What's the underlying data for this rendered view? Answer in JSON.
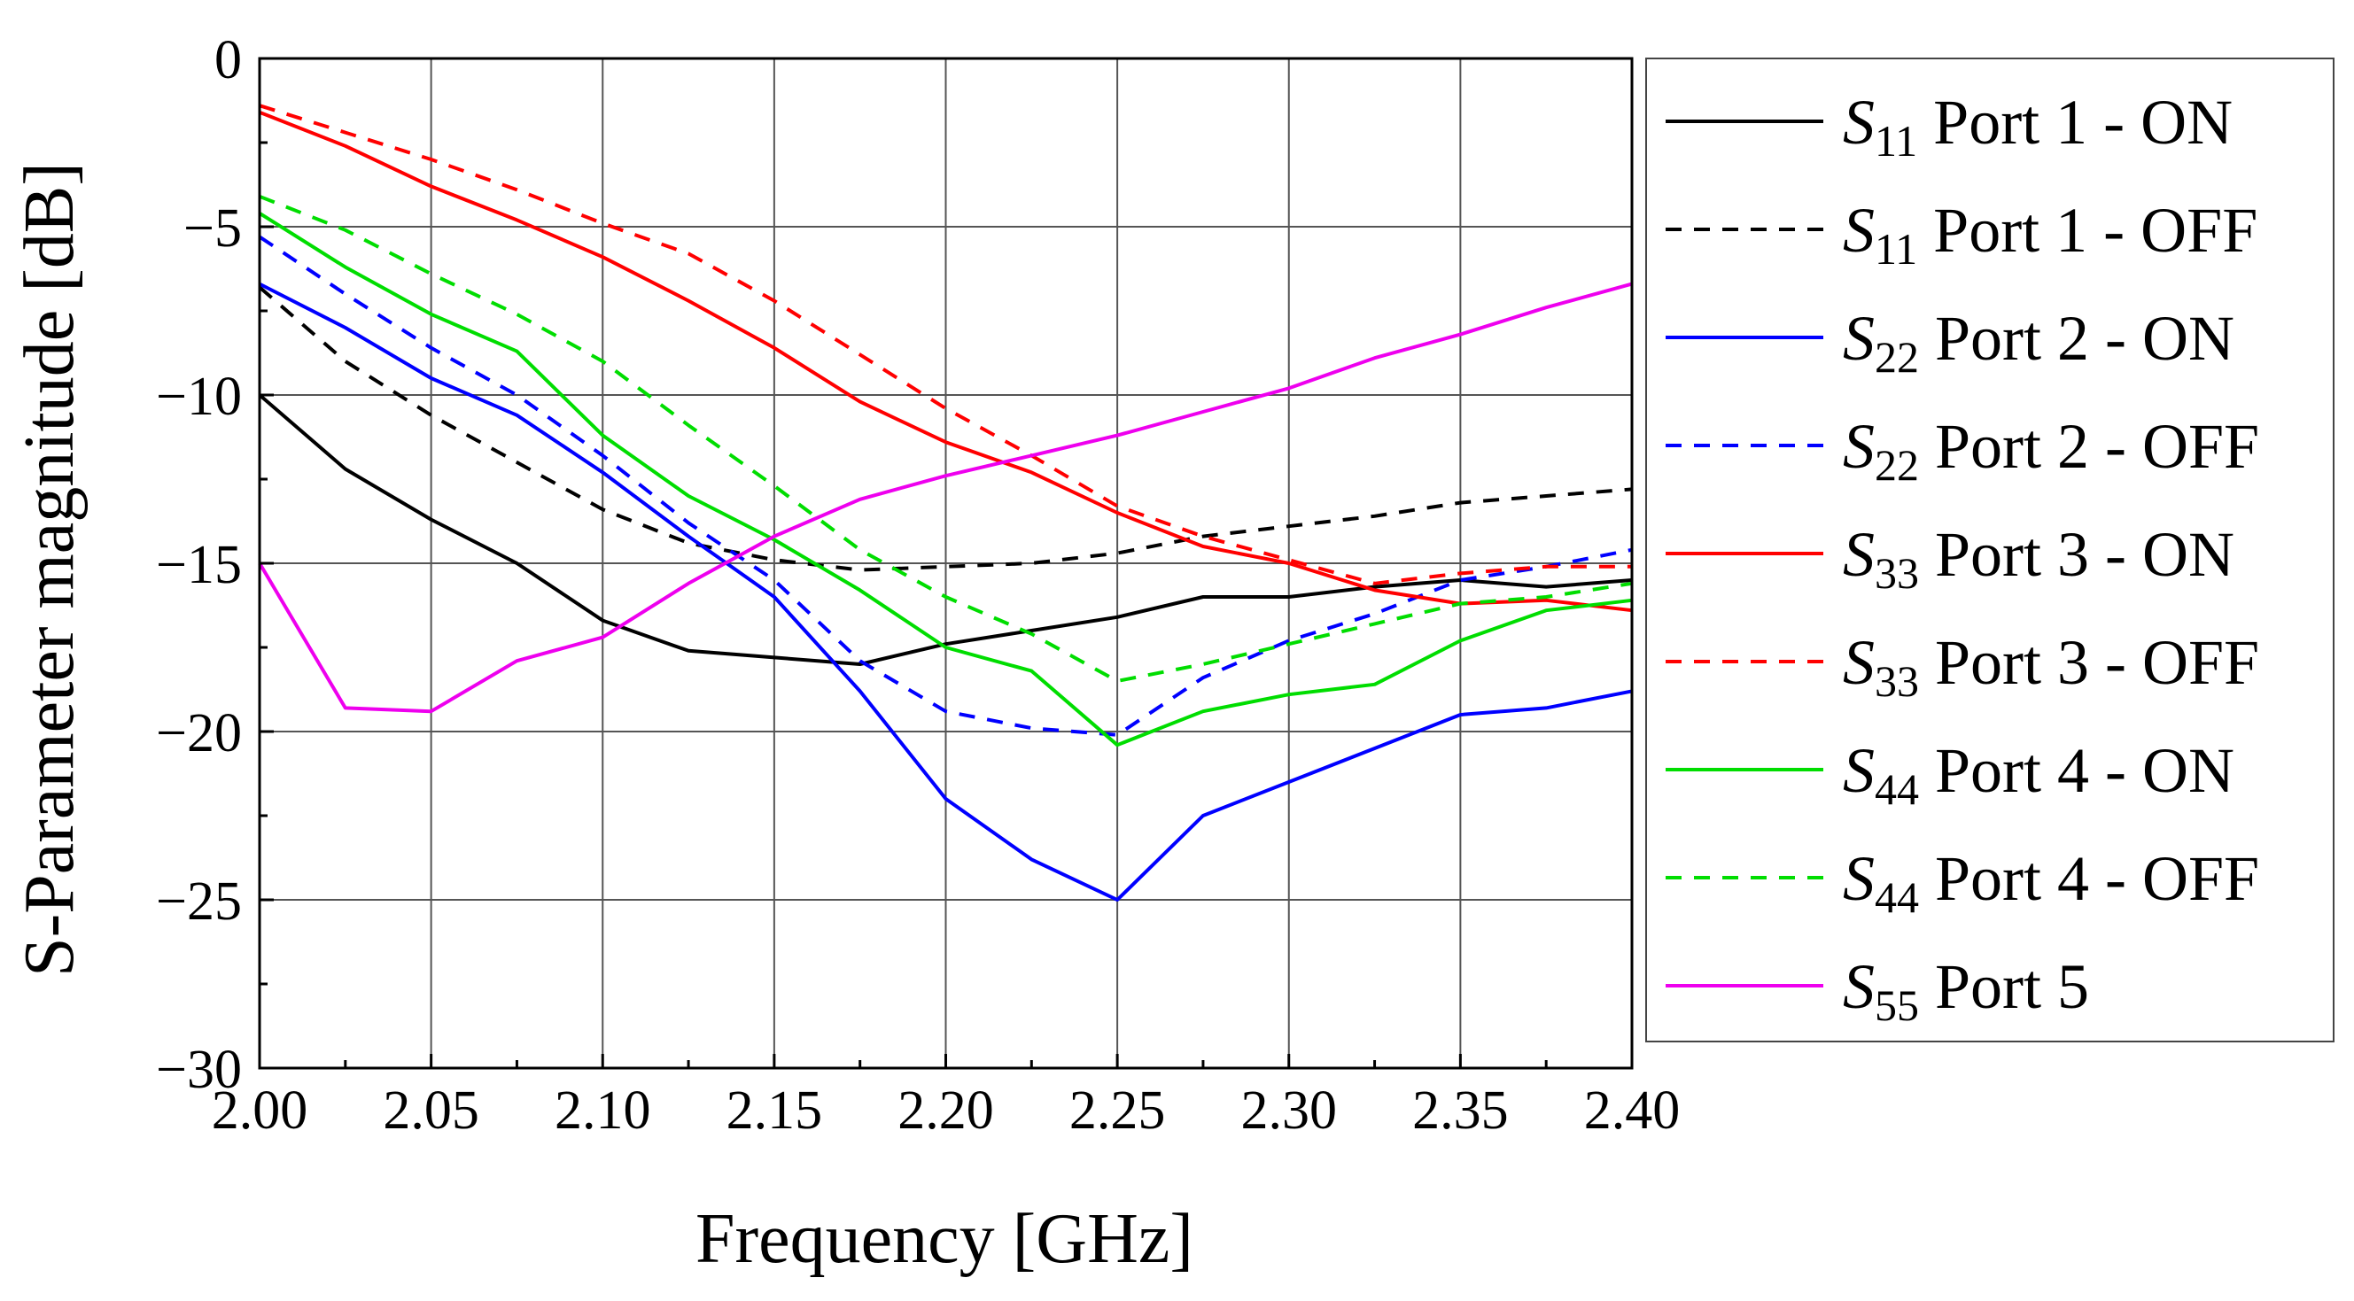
{
  "chart_data": {
    "type": "line",
    "title": "",
    "xlabel": "Frequency [GHz]",
    "ylabel": "S-Parameter magnitude [dB]",
    "xlim": [
      2.0,
      2.4
    ],
    "ylim": [
      -30,
      0
    ],
    "grid": true,
    "legend_position": "right",
    "x_ticks": [
      "2.00",
      "2.05",
      "2.10",
      "2.15",
      "2.20",
      "2.25",
      "2.30",
      "2.35",
      "2.40"
    ],
    "y_ticks": [
      "0",
      "−5",
      "−10",
      "−15",
      "−20",
      "−25",
      "−30"
    ],
    "x": [
      2.0,
      2.025,
      2.05,
      2.075,
      2.1,
      2.125,
      2.15,
      2.175,
      2.2,
      2.225,
      2.25,
      2.275,
      2.3,
      2.325,
      2.35,
      2.375,
      2.4
    ],
    "series": [
      {
        "name": "S11 Port 1 - ON",
        "sym": "S",
        "sub": "11",
        "rest": " Port 1 - ON",
        "color": "#000000",
        "dashed": false,
        "values": [
          -10.0,
          -12.2,
          -13.7,
          -15.0,
          -16.7,
          -17.6,
          -17.8,
          -18.0,
          -17.4,
          -17.0,
          -16.6,
          -16.0,
          -16.0,
          -15.7,
          -15.5,
          -15.7,
          -15.5
        ]
      },
      {
        "name": "S11 Port 1 - OFF",
        "sym": "S",
        "sub": "11",
        "rest": " Port 1 - OFF",
        "color": "#000000",
        "dashed": true,
        "values": [
          -6.8,
          -9.0,
          -10.6,
          -12.0,
          -13.4,
          -14.4,
          -14.9,
          -15.2,
          -15.1,
          -15.0,
          -14.7,
          -14.2,
          -13.9,
          -13.6,
          -13.2,
          -13.0,
          -12.8
        ]
      },
      {
        "name": "S22 Port 2 - ON",
        "sym": "S",
        "sub": "22",
        "rest": " Port 2 - ON",
        "color": "#0000ff",
        "dashed": false,
        "values": [
          -6.7,
          -8.0,
          -9.5,
          -10.6,
          -12.3,
          -14.2,
          -16.0,
          -18.8,
          -22.0,
          -23.8,
          -25.0,
          -22.5,
          -21.5,
          -20.5,
          -19.5,
          -19.3,
          -18.8
        ]
      },
      {
        "name": "S22 Port 2 - OFF",
        "sym": "S",
        "sub": "22",
        "rest": " Port 2 - OFF",
        "color": "#0000ff",
        "dashed": true,
        "values": [
          -5.3,
          -7.0,
          -8.6,
          -10.0,
          -11.8,
          -13.8,
          -15.5,
          -17.9,
          -19.4,
          -19.9,
          -20.1,
          -18.4,
          -17.3,
          -16.5,
          -15.5,
          -15.1,
          -14.6
        ]
      },
      {
        "name": "S33 Port 3 - ON",
        "sym": "S",
        "sub": "33",
        "rest": " Port 3 - ON",
        "color": "#ff0000",
        "dashed": false,
        "values": [
          -1.6,
          -2.6,
          -3.8,
          -4.8,
          -5.9,
          -7.2,
          -8.6,
          -10.2,
          -11.4,
          -12.3,
          -13.5,
          -14.5,
          -15.0,
          -15.8,
          -16.2,
          -16.1,
          -16.4
        ]
      },
      {
        "name": "S33 Port 3 - OFF",
        "sym": "S",
        "sub": "33",
        "rest": " Port 3 - OFF",
        "color": "#ff0000",
        "dashed": true,
        "values": [
          -1.4,
          -2.2,
          -3.0,
          -3.9,
          -4.9,
          -5.8,
          -7.2,
          -8.8,
          -10.4,
          -11.8,
          -13.3,
          -14.2,
          -14.9,
          -15.6,
          -15.3,
          -15.1,
          -15.1
        ]
      },
      {
        "name": "S44 Port 4 - ON",
        "sym": "S",
        "sub": "44",
        "rest": " Port 4 - ON",
        "color": "#00dd00",
        "dashed": false,
        "values": [
          -4.6,
          -6.2,
          -7.6,
          -8.7,
          -11.2,
          -13.0,
          -14.3,
          -15.8,
          -17.5,
          -18.2,
          -20.4,
          -19.4,
          -18.9,
          -18.6,
          -17.3,
          -16.4,
          -16.1
        ]
      },
      {
        "name": "S44 Port 4 - OFF",
        "sym": "S",
        "sub": "44",
        "rest": " Port 4 - OFF",
        "color": "#00dd00",
        "dashed": true,
        "values": [
          -4.1,
          -5.1,
          -6.4,
          -7.6,
          -9.0,
          -10.9,
          -12.7,
          -14.6,
          -16.0,
          -17.1,
          -18.5,
          -18.0,
          -17.4,
          -16.8,
          -16.2,
          -16.0,
          -15.6
        ]
      },
      {
        "name": "S55 Port 5",
        "sym": "S",
        "sub": "55",
        "rest": " Port 5",
        "color": "#ee00ee",
        "dashed": false,
        "values": [
          -15.0,
          -19.3,
          -19.4,
          -17.9,
          -17.2,
          -15.6,
          -14.2,
          -13.1,
          -12.4,
          -11.8,
          -11.2,
          -10.5,
          -9.8,
          -8.9,
          -8.2,
          -7.4,
          -6.7
        ]
      }
    ]
  }
}
